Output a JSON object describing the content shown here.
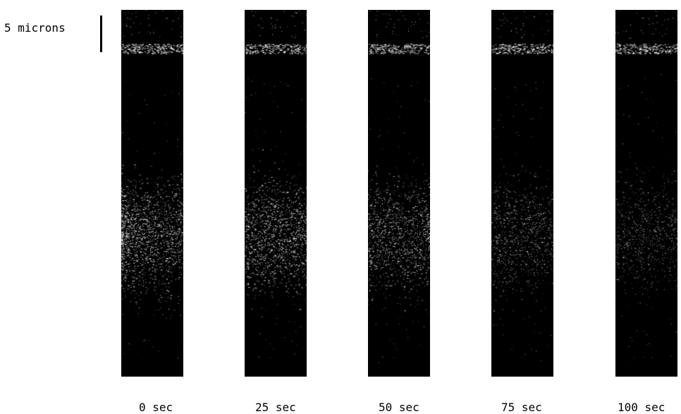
{
  "scale": {
    "label": "5 microns",
    "length_microns": 5
  },
  "panels": [
    {
      "label": "0 sec",
      "intensity": 1.0
    },
    {
      "label": "25 sec",
      "intensity": 0.85
    },
    {
      "label": "50 sec",
      "intensity": 0.75
    },
    {
      "label": "75 sec",
      "intensity": 0.55
    },
    {
      "label": "100 sec",
      "intensity": 0.45
    }
  ],
  "colors": {
    "background": "#ffffff",
    "panel": "#000000",
    "speckle": "#ffffff"
  }
}
